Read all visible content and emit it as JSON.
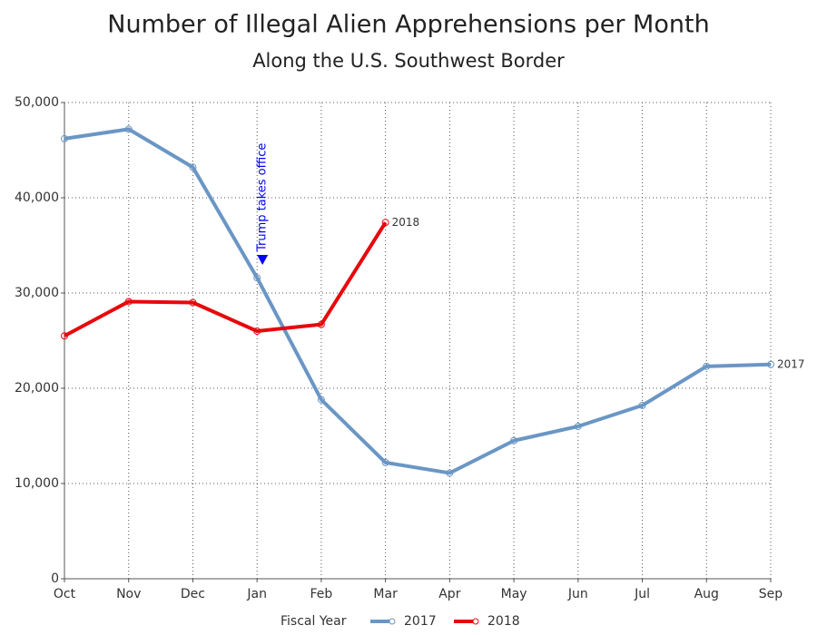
{
  "chart_data": {
    "type": "line",
    "title": "Number of Illegal Alien Apprehensions per Month",
    "subtitle": "Along the U.S. Southwest Border",
    "legend_title": "Fiscal Year",
    "legend": "bottom",
    "grid": true,
    "categories": [
      "Oct",
      "Nov",
      "Dec",
      "Jan",
      "Feb",
      "Mar",
      "Apr",
      "May",
      "Jun",
      "Jul",
      "Aug",
      "Sep"
    ],
    "series": [
      {
        "name": "2017",
        "color": "#6a96c5",
        "values": [
          46200,
          47200,
          43200,
          31600,
          18800,
          12200,
          11100,
          14500,
          16000,
          18200,
          22300,
          22500
        ]
      },
      {
        "name": "2018",
        "color": "#e8080c",
        "values": [
          25500,
          29100,
          29000,
          26000,
          26700,
          37400,
          null,
          null,
          null,
          null,
          null,
          null
        ]
      }
    ],
    "annotations": [
      {
        "text": "Trump takes office",
        "x": "Jan"
      }
    ],
    "ylim": [
      0,
      50000
    ],
    "yticks": [
      0,
      {
        "value": 10000,
        "label": "10,000"
      },
      {
        "value": 20000,
        "label": "20,000"
      },
      {
        "value": 30000,
        "label": "30,000"
      },
      {
        "value": 40000,
        "label": "40,000"
      },
      {
        "value": 50000,
        "label": "50,000"
      }
    ]
  }
}
